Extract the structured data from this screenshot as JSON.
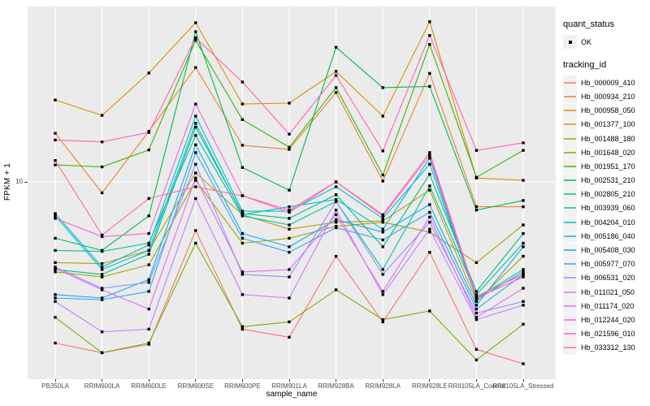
{
  "chart_data": {
    "type": "line",
    "xlabel": "sample_name",
    "ylabel": "FPKM + 1",
    "yscale": "log10",
    "y_tick_labels": [
      "10"
    ],
    "ylim_fpkm_plus1": [
      0.82,
      92
    ],
    "grid": "major-white-on-grey",
    "panel_background": "#EBEBEB",
    "gridline_color": "#FFFFFF",
    "marker": {
      "shape": "square",
      "color": "#000000"
    },
    "categories": [
      "PB350LA",
      "RRIM600LA",
      "RRIM600LE",
      "RRIM600SE",
      "RRIM600PE",
      "RRIM901LA",
      "RRIM928BA",
      "RRIM928LA",
      "RRIM928LE",
      "RRII105LA_Control",
      "RRII105LA_Stressed"
    ],
    "legend": {
      "position": "right",
      "quant_status": {
        "title": "quant_status",
        "items": [
          {
            "label": "OK",
            "marker": "square",
            "color": "#000000"
          }
        ]
      },
      "tracking_id_title": "tracking_id"
    },
    "series": [
      {
        "name": "Hb_000009_410",
        "color": "#F8766D",
        "values": [
          1.3,
          1.15,
          1.28,
          5.4,
          1.55,
          1.4,
          3.9,
          1.7,
          4.1,
          1.2,
          1.0
        ]
      },
      {
        "name": "Hb_000934_210",
        "color": "#EA8331",
        "values": [
          18.5,
          8.7,
          19.0,
          42.5,
          15.9,
          15.1,
          31.0,
          10.1,
          39.5,
          7.3,
          7.3
        ]
      },
      {
        "name": "Hb_000958_050",
        "color": "#D89000",
        "values": [
          28.2,
          23.2,
          39.7,
          75.0,
          26.8,
          27.1,
          40.5,
          23.0,
          76.0,
          10.5,
          10.2
        ]
      },
      {
        "name": "Hb_001377_100",
        "color": "#C09B00",
        "values": [
          3.6,
          3.55,
          4.2,
          11.2,
          6.6,
          5.5,
          6.0,
          6.1,
          9.0,
          2.2,
          3.9
        ]
      },
      {
        "name": "Hb_001488_180",
        "color": "#A3A500",
        "values": [
          3.2,
          3.0,
          3.5,
          10.2,
          4.6,
          4.9,
          5.7,
          6.0,
          5.3,
          3.6,
          5.8
        ]
      },
      {
        "name": "Hb_001648_020",
        "color": "#7CAE00",
        "values": [
          1.8,
          1.15,
          1.3,
          4.6,
          1.6,
          1.7,
          2.55,
          1.75,
          1.95,
          1.05,
          1.65
        ]
      },
      {
        "name": "Hb_001951_170",
        "color": "#39B600",
        "values": [
          12.4,
          12.1,
          15.0,
          60.0,
          22.0,
          15.5,
          33.0,
          10.9,
          57.0,
          10.6,
          14.9
        ]
      },
      {
        "name": "Hb_002531_210",
        "color": "#00BB4E",
        "values": [
          4.9,
          4.2,
          6.5,
          67.0,
          12.0,
          9.0,
          55.0,
          33.0,
          33.5,
          7.0,
          7.9
        ]
      },
      {
        "name": "Hb_002805_210",
        "color": "#00BF7D",
        "values": [
          3.3,
          3.1,
          4.0,
          20.0,
          6.7,
          6.3,
          8.5,
          4.4,
          11.0,
          2.5,
          5.2
        ]
      },
      {
        "name": "Hb_003939_060",
        "color": "#00C1A3",
        "values": [
          4.2,
          4.15,
          4.6,
          18.0,
          6.5,
          5.8,
          7.8,
          3.3,
          9.5,
          2.4,
          4.6
        ]
      },
      {
        "name": "Hb_004204_010",
        "color": "#00BFC4",
        "values": [
          6.7,
          3.4,
          4.5,
          23.0,
          6.9,
          6.9,
          9.4,
          6.3,
          12.5,
          2.3,
          3.3
        ]
      },
      {
        "name": "Hb_005186_040",
        "color": "#00BAE0",
        "values": [
          6.5,
          3.3,
          4.2,
          21.0,
          6.6,
          7.3,
          8.0,
          5.5,
          13.5,
          2.25,
          3.2
        ]
      },
      {
        "name": "Hb_005408_030",
        "color": "#00B0F6",
        "values": [
          2.4,
          2.3,
          2.9,
          16.0,
          5.2,
          4.4,
          6.2,
          5.3,
          7.5,
          2.1,
          4.4
        ]
      },
      {
        "name": "Hb_005977_070",
        "color": "#35A2FF",
        "values": [
          2.3,
          2.25,
          2.5,
          14.5,
          4.9,
          4.1,
          5.6,
          4.8,
          6.8,
          2.0,
          3.1
        ]
      },
      {
        "name": "Hb_006531_020",
        "color": "#9590FF",
        "values": [
          3.4,
          2.6,
          2.8,
          12.5,
          3.1,
          3.0,
          7.8,
          3.1,
          6.0,
          1.9,
          2.2
        ]
      },
      {
        "name": "Hb_011021_050",
        "color": "#C77CFF",
        "values": [
          2.2,
          1.5,
          1.55,
          8.1,
          2.4,
          2.3,
          7.0,
          2.4,
          5.5,
          1.75,
          2.1
        ]
      },
      {
        "name": "Hb_011174_020",
        "color": "#E76BF3",
        "values": [
          3.35,
          2.55,
          2.0,
          10.5,
          3.2,
          3.3,
          6.6,
          2.5,
          6.4,
          1.8,
          2.6
        ]
      },
      {
        "name": "Hb_012244_020",
        "color": "#FA62DB",
        "values": [
          6.3,
          5.0,
          5.2,
          26.8,
          8.4,
          7.0,
          10.0,
          6.5,
          14.0,
          2.3,
          3.0
        ]
      },
      {
        "name": "Hb_021596_010",
        "color": "#FF62BC",
        "values": [
          17.0,
          16.6,
          18.7,
          62.0,
          35.4,
          18.3,
          38.5,
          14.8,
          63.8,
          14.9,
          16.4
        ]
      },
      {
        "name": "Hb_033312_130",
        "color": "#FF6A98",
        "values": [
          13.1,
          5.1,
          8.1,
          9.4,
          8.4,
          6.8,
          10.0,
          6.6,
          14.5,
          2.35,
          3.1
        ]
      }
    ]
  }
}
